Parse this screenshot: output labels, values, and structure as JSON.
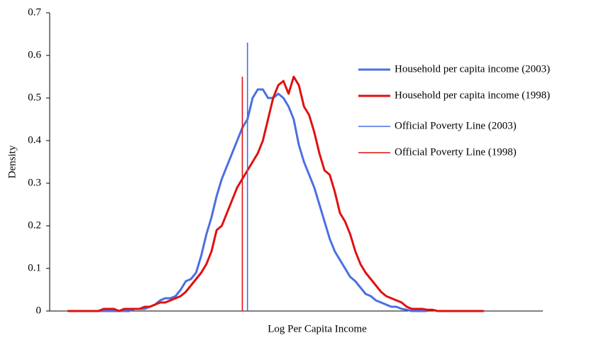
{
  "chart_data": {
    "type": "line",
    "xlabel": "Log Per Capita Income",
    "ylabel": "Density",
    "ylim": [
      0,
      0.7
    ],
    "yticks": [
      0,
      0.1,
      0.2,
      0.3,
      0.4,
      0.5,
      0.6,
      0.7
    ],
    "legend": "right",
    "categories": [
      null,
      null,
      null,
      null,
      null,
      null,
      null,
      null,
      null,
      null,
      null,
      null,
      null,
      null,
      null,
      null,
      null,
      null,
      null,
      null,
      null,
      null,
      null,
      null,
      null,
      null,
      null,
      null,
      null,
      null,
      null,
      null,
      null,
      null,
      null,
      null,
      null,
      null,
      null,
      null,
      null,
      null,
      null,
      null,
      null,
      null,
      null,
      null,
      null,
      null,
      null,
      null,
      null,
      null,
      null,
      null,
      null,
      null,
      null,
      null,
      null,
      null,
      null,
      null,
      null,
      null,
      null,
      null,
      null,
      null,
      null,
      null,
      null,
      null,
      null,
      null,
      null,
      null,
      null,
      null,
      null,
      null,
      null,
      null,
      null,
      null,
      null,
      null,
      null,
      null,
      null,
      null,
      null,
      null,
      null,
      null
    ],
    "series": [
      {
        "name": "Household per capita income (2003)",
        "color": "#4a6fe3",
        "style": "curve",
        "values": [
          null,
          null,
          null,
          0,
          0,
          0,
          0,
          0,
          0,
          0,
          0,
          0,
          0,
          0,
          0,
          0,
          0.005,
          0.005,
          0.005,
          0.01,
          0.015,
          0.025,
          0.03,
          0.03,
          0.035,
          0.05,
          0.07,
          0.075,
          0.09,
          0.13,
          0.18,
          0.22,
          0.27,
          0.31,
          0.34,
          0.37,
          0.4,
          0.43,
          0.45,
          0.5,
          0.52,
          0.52,
          0.5,
          0.5,
          0.51,
          0.5,
          0.48,
          0.45,
          0.39,
          0.35,
          0.32,
          0.29,
          0.25,
          0.21,
          0.17,
          0.14,
          0.12,
          0.1,
          0.08,
          0.07,
          0.055,
          0.04,
          0.035,
          0.025,
          0.02,
          0.015,
          0.01,
          0.01,
          0.005,
          0.003,
          0,
          0,
          0,
          0,
          null,
          null,
          null,
          null,
          null,
          null,
          null,
          null,
          null,
          null,
          null,
          null,
          null,
          null,
          null,
          null,
          null,
          null,
          null,
          null,
          null,
          null
        ]
      },
      {
        "name": "Household per capita income (1998)",
        "color": "#e01010",
        "style": "curve",
        "values": [
          null,
          null,
          null,
          0,
          0,
          0,
          0,
          0,
          0,
          0,
          0.005,
          0.005,
          0.005,
          0,
          0.005,
          0.005,
          0.005,
          0.005,
          0.01,
          0.01,
          0.015,
          0.02,
          0.02,
          0.025,
          0.03,
          0.035,
          0.045,
          0.06,
          0.075,
          0.09,
          0.11,
          0.14,
          0.19,
          0.2,
          0.23,
          0.26,
          0.29,
          0.31,
          0.33,
          0.35,
          0.37,
          0.4,
          0.45,
          0.5,
          0.53,
          0.54,
          0.51,
          0.55,
          0.53,
          0.48,
          0.46,
          0.42,
          0.37,
          0.33,
          0.32,
          0.28,
          0.23,
          0.21,
          0.18,
          0.14,
          0.11,
          0.09,
          0.075,
          0.06,
          0.045,
          0.035,
          0.03,
          0.025,
          0.02,
          0.01,
          0.005,
          0.005,
          0.005,
          0.003,
          0.003,
          0,
          0,
          0,
          0,
          0,
          0,
          0,
          0,
          0,
          0,
          null,
          null,
          null,
          null,
          null,
          null,
          null,
          null,
          null,
          null,
          null
        ]
      },
      {
        "name": "Official Poverty Line (2003)",
        "color": "#4a6fe3",
        "style": "vline",
        "values": [
          null,
          null,
          null,
          null,
          null,
          null,
          null,
          null,
          null,
          null,
          null,
          null,
          null,
          null,
          null,
          null,
          null,
          null,
          null,
          null,
          null,
          null,
          null,
          null,
          null,
          null,
          null,
          null,
          null,
          null,
          null,
          null,
          null,
          null,
          null,
          null,
          null,
          null,
          0.63,
          null,
          null,
          null,
          null,
          null,
          null,
          null,
          null,
          null,
          null,
          null,
          null,
          null,
          null,
          null,
          null,
          null,
          null,
          null,
          null,
          null,
          null,
          null,
          null,
          null,
          null,
          null,
          null,
          null,
          null,
          null,
          null,
          null,
          null,
          null,
          null,
          null,
          null,
          null,
          null,
          null,
          null,
          null,
          null,
          null,
          null,
          null,
          null,
          null,
          null,
          null,
          null,
          null,
          null,
          null,
          null,
          null
        ]
      },
      {
        "name": "Official Poverty Line (1998)",
        "color": "#e01010",
        "style": "vline",
        "values": [
          null,
          null,
          null,
          null,
          null,
          null,
          null,
          null,
          null,
          null,
          null,
          null,
          null,
          null,
          null,
          null,
          null,
          null,
          null,
          null,
          null,
          null,
          null,
          null,
          null,
          null,
          null,
          null,
          null,
          null,
          null,
          null,
          null,
          null,
          null,
          null,
          null,
          0.55,
          null,
          null,
          null,
          null,
          null,
          null,
          null,
          null,
          null,
          null,
          null,
          null,
          null,
          null,
          null,
          null,
          null,
          null,
          null,
          null,
          null,
          null,
          null,
          null,
          null,
          null,
          null,
          null,
          null,
          null,
          null,
          null,
          null,
          null,
          null,
          null,
          null,
          null,
          null,
          null,
          null,
          null,
          null,
          null,
          null,
          null,
          null,
          null,
          null,
          null,
          null,
          null,
          null,
          null,
          null,
          null,
          null,
          null
        ]
      }
    ]
  }
}
